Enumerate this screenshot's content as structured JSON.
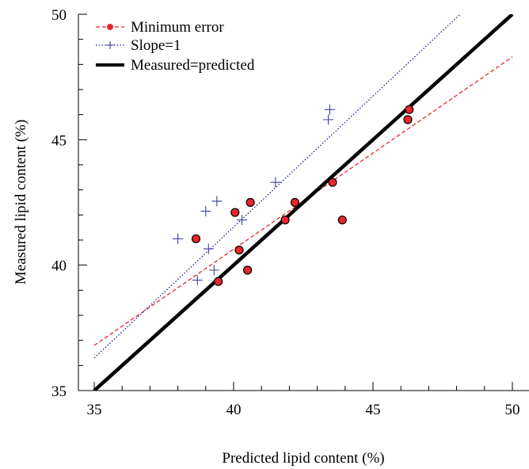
{
  "chart_data": {
    "type": "scatter",
    "title": "",
    "xlabel": "Predicted lipid content (%)",
    "ylabel": "Measured lipid content (%)",
    "xlim": [
      35,
      50
    ],
    "ylim": [
      35,
      50
    ],
    "xticks": [
      35,
      40,
      45,
      50
    ],
    "yticks": [
      35,
      40,
      45,
      50
    ],
    "xtick_labels": [
      "35",
      "40",
      "45",
      "50"
    ],
    "ytick_labels": [
      "35",
      "40",
      "45",
      "50"
    ],
    "grid": false,
    "legend_position": "top-left",
    "series": [
      {
        "name": "Minimum error",
        "marker": "circle",
        "color": "#e8262b",
        "x": [
          38.65,
          40.05,
          40.6,
          40.2,
          40.5,
          39.45,
          41.85,
          42.2,
          43.55,
          43.9,
          46.25,
          46.3
        ],
        "y": [
          41.05,
          42.1,
          42.5,
          40.6,
          39.8,
          39.35,
          41.8,
          42.5,
          43.3,
          41.8,
          45.8,
          46.2
        ],
        "fit_line": {
          "style": "dashed",
          "color": "#e8262b",
          "x": [
            35,
            50
          ],
          "y": [
            36.8,
            48.3
          ]
        }
      },
      {
        "name": "Slope=1",
        "marker": "plus",
        "color": "#3b3fa0",
        "x": [
          38.0,
          39.0,
          39.4,
          38.7,
          39.3,
          39.1,
          40.3,
          41.5,
          43.4,
          43.45
        ],
        "y": [
          41.05,
          42.15,
          42.55,
          39.4,
          39.8,
          40.65,
          41.8,
          43.3,
          45.8,
          46.2
        ],
        "fit_line": {
          "style": "dotted",
          "color": "#2a2d8f",
          "x": [
            35,
            48.7
          ],
          "y": [
            36.3,
            50.6
          ]
        }
      },
      {
        "name": "Measured=predicted",
        "marker": "none",
        "color": "#000000",
        "line": {
          "style": "solid",
          "x": [
            35,
            50
          ],
          "y": [
            35,
            50
          ]
        }
      }
    ]
  }
}
